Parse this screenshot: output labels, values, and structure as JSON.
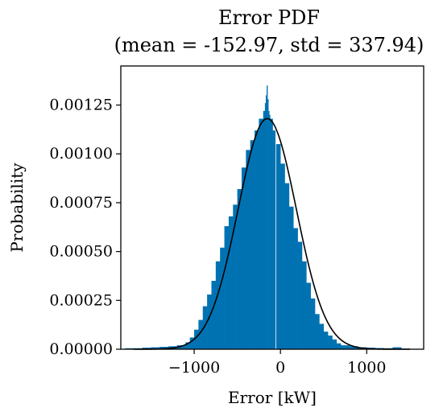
{
  "chart_data": {
    "type": "bar",
    "title": "Error PDF",
    "subtitle": "(mean = -152.97, std = 337.94)",
    "xlabel": "Error [kW]",
    "ylabel": "Probability",
    "xlim": [
      -1850,
      1660
    ],
    "ylim": [
      0,
      0.00145
    ],
    "xticks": [
      -1000,
      0,
      1000
    ],
    "xtick_labels": [
      "−1000",
      "0",
      "1000"
    ],
    "yticks": [
      0,
      0.00025,
      0.0005,
      0.00075,
      0.001,
      0.00125
    ],
    "ytick_labels": [
      "0.00000",
      "0.00025",
      "0.00050",
      "0.00075",
      "0.00100",
      "0.00125"
    ],
    "bar_color": "#0072b2",
    "fit_color": "#000000",
    "fit": {
      "distribution": "normal",
      "mean": -152.97,
      "std": 337.94
    },
    "grid": false,
    "bins": {
      "x": [
        -1750,
        -1650,
        -1550,
        -1450,
        -1350,
        -1250,
        -1150,
        -1075,
        -1025,
        -975,
        -925,
        -875,
        -825,
        -775,
        -725,
        -675,
        -625,
        -575,
        -525,
        -475,
        -425,
        -375,
        -325,
        -275,
        -225,
        -185,
        -175,
        -165,
        -155,
        -145,
        -135,
        -125,
        -105,
        -75,
        -25,
        25,
        75,
        125,
        175,
        225,
        275,
        325,
        375,
        425,
        475,
        525,
        575,
        625,
        675,
        750,
        850,
        950,
        1050,
        1150,
        1250,
        1350,
        1450
      ],
      "width": [
        100,
        100,
        100,
        100,
        100,
        100,
        100,
        50,
        50,
        50,
        50,
        50,
        50,
        50,
        50,
        50,
        50,
        50,
        50,
        50,
        50,
        50,
        50,
        50,
        50,
        30,
        10,
        10,
        10,
        10,
        10,
        10,
        30,
        30,
        50,
        50,
        50,
        50,
        50,
        50,
        50,
        50,
        50,
        50,
        50,
        50,
        50,
        50,
        50,
        100,
        100,
        100,
        100,
        100,
        100,
        100,
        100
      ],
      "values": [
        5e-06,
        5e-06,
        8e-06,
        1e-05,
        1.2e-05,
        1.5e-05,
        2e-05,
        3.5e-05,
        6e-05,
        0.0001,
        0.00015,
        0.00022,
        0.00028,
        0.00035,
        0.00045,
        0.00052,
        0.00063,
        0.00068,
        0.00074,
        0.00082,
        0.00093,
        0.00102,
        0.00107,
        0.00112,
        0.00118,
        0.00122,
        0.00126,
        0.0013,
        0.00135,
        0.00128,
        0.00122,
        0.0012,
        0.00118,
        0.00112,
        0.00105,
        0.00095,
        0.00085,
        0.00073,
        0.00062,
        0.00055,
        0.00045,
        0.00034,
        0.00026,
        0.00018,
        0.00013,
        9e-05,
        7e-05,
        5e-05,
        3e-05,
        2e-05,
        1.5e-05,
        1e-05,
        8e-06,
        6e-06,
        5e-06,
        1e-05,
        3e-06
      ]
    }
  }
}
